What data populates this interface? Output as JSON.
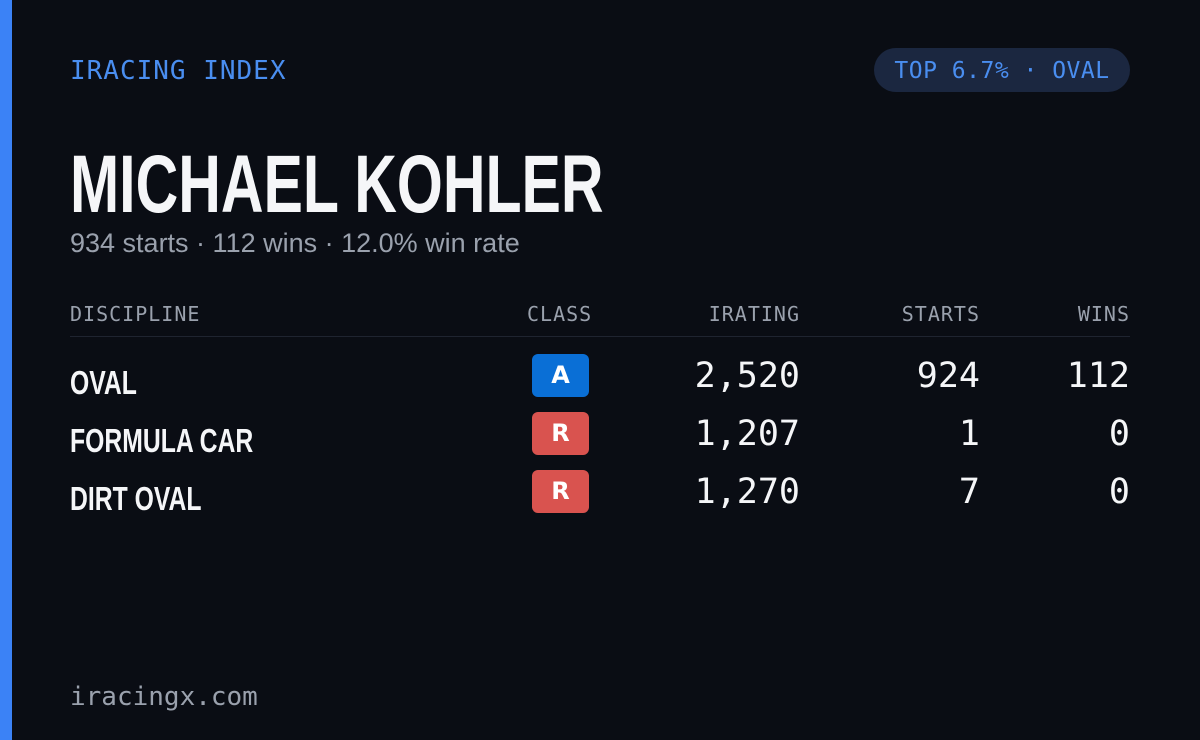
{
  "header": {
    "brand": "IRACING INDEX",
    "badge": "TOP 6.7% · OVAL"
  },
  "driver": {
    "name": "MICHAEL KOHLER",
    "summary": "934 starts · 112 wins · 12.0% win rate"
  },
  "table": {
    "columns": [
      "DISCIPLINE",
      "CLASS",
      "IRATING",
      "STARTS",
      "WINS"
    ],
    "rows": [
      [
        "OVAL",
        "A",
        "2,520",
        "924",
        "112"
      ],
      [
        "FORMULA CAR",
        "R",
        "1,207",
        "1",
        "0"
      ],
      [
        "DIRT OVAL",
        "R",
        "1,270",
        "7",
        "0"
      ]
    ]
  },
  "footer": {
    "site": "iracingx.com"
  }
}
